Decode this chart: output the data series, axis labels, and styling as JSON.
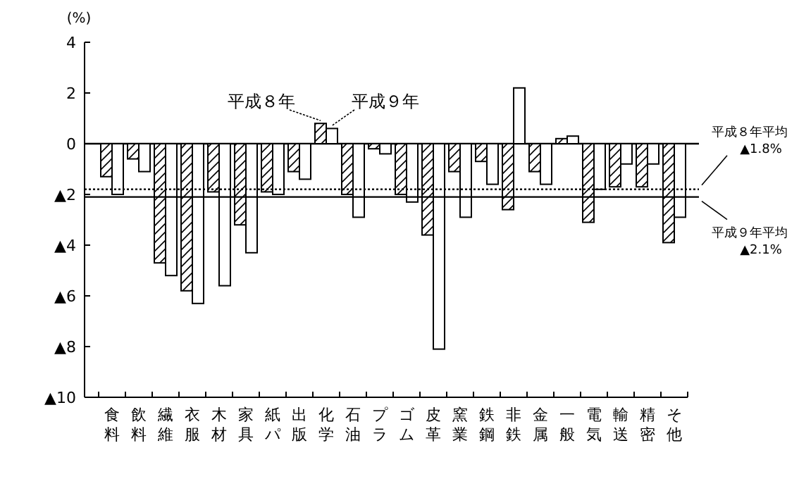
{
  "chart_data": {
    "type": "bar",
    "ylabel": "(%)",
    "categories": [
      "食料",
      "飲料",
      "繊維",
      "衣服",
      "木材",
      "家具",
      "紙パ",
      "出版",
      "化学",
      "石油",
      "プラ",
      "ゴム",
      "皮革",
      "窯業",
      "鉄鋼",
      "非鉄",
      "金属",
      "一般",
      "電気",
      "輸送",
      "精密",
      "そ他"
    ],
    "series": [
      {
        "name": "平成８年",
        "color": "#000000",
        "values": [
          -1.3,
          -0.6,
          -4.7,
          -5.8,
          -1.9,
          -3.2,
          -1.9,
          -1.1,
          0.8,
          -2.0,
          -0.2,
          -2.0,
          -3.6,
          -1.1,
          -0.7,
          -2.6,
          -1.1,
          0.2,
          -3.1,
          -1.7,
          -1.7,
          -3.9
        ]
      },
      {
        "name": "平成９年",
        "color": "#ffffff",
        "values": [
          -2.0,
          -1.1,
          -5.2,
          -6.3,
          -5.6,
          -4.3,
          -2.0,
          -1.4,
          0.6,
          -2.9,
          -0.4,
          -2.3,
          -8.1,
          -2.9,
          -1.6,
          2.2,
          -1.6,
          0.3,
          -1.8,
          -0.8,
          -0.8,
          -2.9
        ]
      }
    ],
    "ylim": [
      -10,
      4
    ],
    "yticks": [
      {
        "value": -10,
        "label": "▲10"
      },
      {
        "value": -8,
        "label": "▲8"
      },
      {
        "value": -6,
        "label": "▲6"
      },
      {
        "value": -4,
        "label": "▲4"
      },
      {
        "value": -2,
        "label": "▲2"
      },
      0,
      2,
      4
    ],
    "ref_lines": [
      {
        "axis": "y",
        "value": -1.8,
        "label": "平成８年平均 ▲1.8%",
        "line_style": "dotted"
      },
      {
        "axis": "y",
        "value": -2.1,
        "label": "平成９年平均 ▲2.1%",
        "line_style": "solid"
      }
    ]
  }
}
